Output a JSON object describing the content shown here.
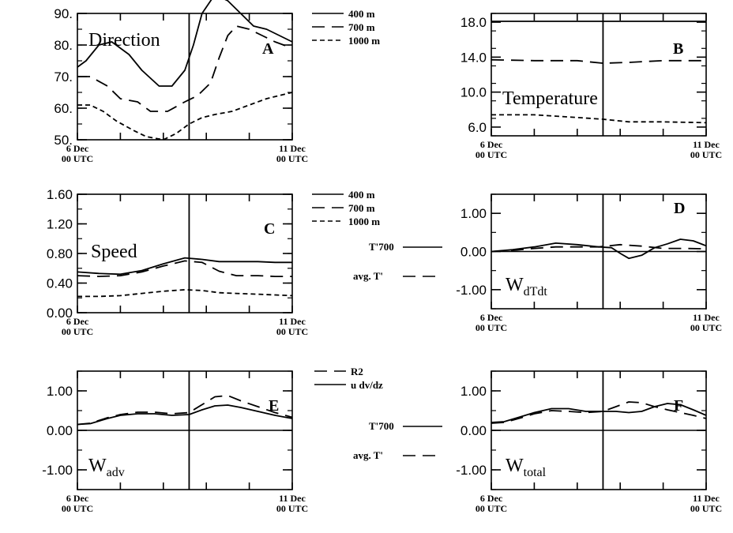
{
  "chart_data": [
    {
      "id": "A",
      "type": "line",
      "letter": "A",
      "title": "Direction",
      "title_sub": "",
      "ylim": [
        50,
        90
      ],
      "yticks": [
        "90.",
        "80.",
        "70.",
        "60.",
        "50."
      ],
      "ytick_values": [
        90,
        80,
        70,
        60,
        50
      ],
      "xlim": [
        0,
        5
      ],
      "x_start": [
        "6 Dec",
        "00 UTC"
      ],
      "x_end": [
        "11 Dec",
        "00 UTC"
      ],
      "vline": 2.6,
      "hline": null,
      "legend": [
        "400 m",
        "700 m",
        "1000 m"
      ],
      "series": [
        {
          "style": "solid",
          "x": [
            0,
            0.2,
            0.5,
            0.8,
            1.2,
            1.5,
            1.9,
            2.2,
            2.5,
            2.7,
            2.9,
            3.2,
            3.5,
            3.8,
            4.1,
            4.4,
            4.7,
            5.0
          ],
          "y": [
            73,
            75,
            80,
            81,
            77,
            72,
            67,
            67,
            72,
            80,
            90,
            96,
            94,
            90,
            86,
            85,
            83,
            81
          ]
        },
        {
          "style": "dashed",
          "x": [
            0,
            0.3,
            0.7,
            1.0,
            1.4,
            1.7,
            2.1,
            2.5,
            2.8,
            3.1,
            3.3,
            3.5,
            3.7,
            4.0,
            4.3,
            4.6,
            5.0
          ],
          "y": [
            70,
            70,
            67,
            63,
            62,
            59,
            59,
            62,
            64,
            68,
            76,
            83,
            86,
            85,
            83,
            81,
            79
          ]
        },
        {
          "style": "short",
          "x": [
            0,
            0.3,
            0.6,
            0.9,
            1.3,
            1.6,
            2.0,
            2.3,
            2.6,
            2.9,
            3.2,
            3.6,
            4.0,
            4.4,
            4.7,
            5.0
          ],
          "y": [
            61,
            61,
            59,
            56,
            53,
            51,
            50,
            52,
            55,
            57,
            58,
            59,
            61,
            63,
            64,
            65
          ]
        }
      ]
    },
    {
      "id": "B",
      "type": "line",
      "letter": "B",
      "title": "Temperature",
      "title_sub": "",
      "ylim": [
        5,
        19
      ],
      "yticks": [
        "18.0",
        "14.0",
        "10.0",
        "6.0"
      ],
      "ytick_values": [
        18,
        14,
        10,
        6
      ],
      "xlim": [
        0,
        5
      ],
      "x_start": [
        "6 Dec",
        "00 UTC"
      ],
      "x_end": [
        "11 Dec",
        "00 UTC"
      ],
      "vline": 2.6,
      "hline": null,
      "legend": [],
      "series": [
        {
          "style": "solid",
          "x": [
            0,
            5
          ],
          "y": [
            18.1,
            18.1
          ]
        },
        {
          "style": "dashed",
          "x": [
            0,
            1,
            2,
            2.6,
            3.2,
            4,
            5
          ],
          "y": [
            13.7,
            13.6,
            13.6,
            13.3,
            13.4,
            13.6,
            13.6
          ]
        },
        {
          "style": "short",
          "x": [
            0,
            1,
            2,
            2.6,
            3.2,
            4,
            5
          ],
          "y": [
            7.4,
            7.4,
            7.1,
            6.9,
            6.6,
            6.6,
            6.5
          ]
        }
      ]
    },
    {
      "id": "C",
      "type": "line",
      "letter": "C",
      "title": "Speed",
      "title_sub": "",
      "ylim": [
        0,
        1.6
      ],
      "yticks": [
        "1.60",
        "1.20",
        "0.80",
        "0.40",
        "0.00"
      ],
      "ytick_values": [
        1.6,
        1.2,
        0.8,
        0.4,
        0
      ],
      "xlim": [
        0,
        5
      ],
      "x_start": [
        "6 Dec",
        "00 UTC"
      ],
      "x_end": [
        "11 Dec",
        "00 UTC"
      ],
      "vline": 2.6,
      "hline": null,
      "legend": [
        "400 m",
        "700 m",
        "1000 m"
      ],
      "series": [
        {
          "style": "solid",
          "x": [
            0,
            0.5,
            1.0,
            1.5,
            2.0,
            2.5,
            2.9,
            3.3,
            3.7,
            4.2,
            4.6,
            5.0
          ],
          "y": [
            0.55,
            0.53,
            0.52,
            0.57,
            0.66,
            0.74,
            0.72,
            0.69,
            0.69,
            0.69,
            0.68,
            0.68
          ]
        },
        {
          "style": "dashed",
          "x": [
            0,
            0.5,
            1.0,
            1.5,
            2.0,
            2.5,
            2.9,
            3.3,
            3.7,
            4.2,
            4.6,
            5.0
          ],
          "y": [
            0.5,
            0.49,
            0.5,
            0.55,
            0.63,
            0.7,
            0.68,
            0.56,
            0.5,
            0.5,
            0.49,
            0.49
          ]
        },
        {
          "style": "short",
          "x": [
            0,
            0.5,
            1.0,
            1.5,
            2.0,
            2.5,
            2.9,
            3.3,
            3.7,
            4.2,
            4.6,
            5.0
          ],
          "y": [
            0.22,
            0.22,
            0.23,
            0.26,
            0.29,
            0.31,
            0.3,
            0.27,
            0.26,
            0.25,
            0.24,
            0.23
          ]
        }
      ]
    },
    {
      "id": "D",
      "type": "line",
      "letter": "D",
      "title": "W",
      "title_sub": "dTdt",
      "ylim": [
        -1.5,
        1.5
      ],
      "yticks": [
        "1.00",
        "0.00",
        "-1.00"
      ],
      "ytick_values": [
        1,
        0,
        -1
      ],
      "xlim": [
        0,
        5
      ],
      "x_start": [
        "6 Dec",
        "00 UTC"
      ],
      "x_end": [
        "11 Dec",
        "00 UTC"
      ],
      "vline": 2.6,
      "hline": 0,
      "legend": [
        "T'700",
        "avg. T'"
      ],
      "series": [
        {
          "style": "solid",
          "x": [
            0,
            0.5,
            1.0,
            1.5,
            2.0,
            2.5,
            2.8,
            3.0,
            3.2,
            3.5,
            3.8,
            4.1,
            4.4,
            4.7,
            5.0
          ],
          "y": [
            0,
            0.05,
            0.12,
            0.22,
            0.18,
            0.12,
            0.1,
            -0.05,
            -0.18,
            -0.1,
            0.1,
            0.2,
            0.32,
            0.28,
            0.15
          ]
        },
        {
          "style": "dashed",
          "x": [
            0,
            0.5,
            1.0,
            1.5,
            2.0,
            2.5,
            3.0,
            3.5,
            4.0,
            4.5,
            5.0
          ],
          "y": [
            0,
            0.03,
            0.08,
            0.12,
            0.12,
            0.12,
            0.18,
            0.14,
            0.08,
            0.08,
            0.07
          ]
        }
      ]
    },
    {
      "id": "E",
      "type": "line",
      "letter": "E",
      "title": "W",
      "title_sub": "adv",
      "ylim": [
        -1.5,
        1.5
      ],
      "yticks": [
        "1.00",
        "0.00",
        "-1.00"
      ],
      "ytick_values": [
        1,
        0,
        -1
      ],
      "xlim": [
        0,
        5
      ],
      "x_start": [
        "6 Dec",
        "00 UTC"
      ],
      "x_end": [
        "11 Dec",
        "00 UTC"
      ],
      "vline": 2.6,
      "hline": 0,
      "legend": [
        "R2",
        "u dv/dz"
      ],
      "series": [
        {
          "style": "dashed",
          "x": [
            0,
            0.3,
            0.7,
            1.0,
            1.4,
            1.8,
            2.2,
            2.6,
            2.9,
            3.2,
            3.5,
            3.8,
            4.2,
            4.6,
            5.0
          ],
          "y": [
            0.15,
            0.18,
            0.32,
            0.4,
            0.46,
            0.46,
            0.42,
            0.45,
            0.65,
            0.85,
            0.88,
            0.75,
            0.6,
            0.45,
            0.33
          ]
        },
        {
          "style": "solid",
          "x": [
            0,
            0.3,
            0.7,
            1.0,
            1.4,
            1.8,
            2.2,
            2.6,
            2.9,
            3.2,
            3.5,
            3.8,
            4.2,
            4.6,
            5.0
          ],
          "y": [
            0.15,
            0.17,
            0.3,
            0.38,
            0.42,
            0.42,
            0.38,
            0.4,
            0.52,
            0.62,
            0.64,
            0.58,
            0.48,
            0.38,
            0.3
          ]
        }
      ]
    },
    {
      "id": "F",
      "type": "line",
      "letter": "F",
      "title": "W",
      "title_sub": "total",
      "ylim": [
        -1.5,
        1.5
      ],
      "yticks": [
        "1.00",
        "0.00",
        "-1.00"
      ],
      "ytick_values": [
        1,
        0,
        -1
      ],
      "xlim": [
        0,
        5
      ],
      "x_start": [
        "6 Dec",
        "00 UTC"
      ],
      "x_end": [
        "11 Dec",
        "00 UTC"
      ],
      "vline": 2.6,
      "hline": 0,
      "legend": [
        "T'700",
        "avg. T'"
      ],
      "series": [
        {
          "style": "solid",
          "x": [
            0,
            0.3,
            0.7,
            1.0,
            1.4,
            1.8,
            2.2,
            2.6,
            2.9,
            3.2,
            3.5,
            3.8,
            4.1,
            4.4,
            4.7,
            5.0
          ],
          "y": [
            0.2,
            0.22,
            0.35,
            0.45,
            0.55,
            0.55,
            0.48,
            0.48,
            0.48,
            0.45,
            0.48,
            0.6,
            0.68,
            0.65,
            0.52,
            0.38
          ]
        },
        {
          "style": "dashed",
          "x": [
            0,
            0.3,
            0.7,
            1.0,
            1.4,
            1.8,
            2.2,
            2.6,
            2.9,
            3.2,
            3.5,
            3.8,
            4.1,
            4.4,
            4.7,
            5.0
          ],
          "y": [
            0.18,
            0.2,
            0.32,
            0.42,
            0.5,
            0.48,
            0.45,
            0.48,
            0.6,
            0.72,
            0.7,
            0.6,
            0.52,
            0.45,
            0.38,
            0.3
          ]
        }
      ]
    }
  ]
}
